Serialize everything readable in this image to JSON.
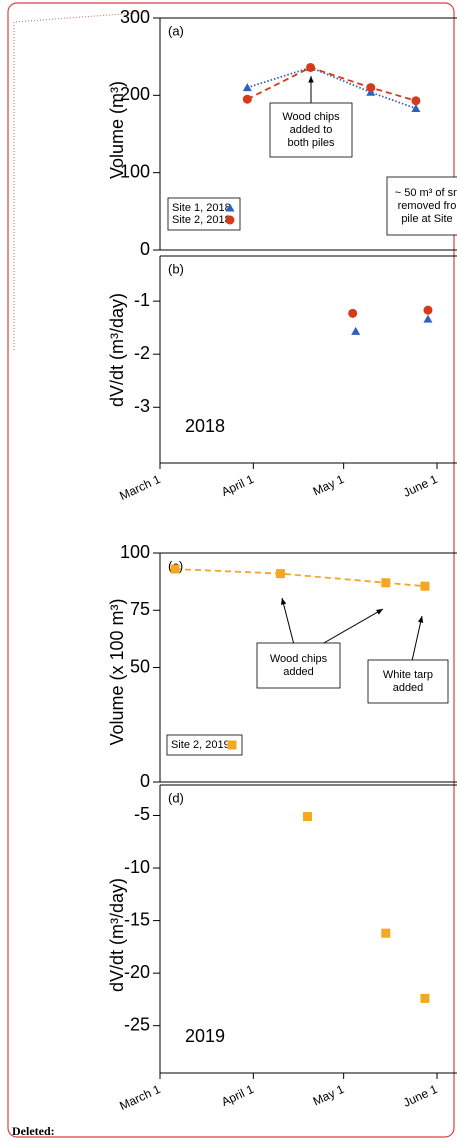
{
  "chart_data": [
    {
      "type": "scatter",
      "panel_label": "(a)",
      "y_label": "Volume (m³)",
      "xlim": [
        0,
        93
      ],
      "ylim": [
        0,
        300
      ],
      "yticks": [
        0,
        100,
        200,
        300
      ],
      "series": [
        {
          "name": "Site 1, 2018",
          "color": "#2f5fbf",
          "marker": "triangle",
          "line_style": "dotted",
          "x": [
            29,
            50,
            70,
            85
          ],
          "values": [
            210,
            236,
            204,
            183
          ]
        },
        {
          "name": "Site 2, 2018",
          "color": "#d63a1a",
          "marker": "circle",
          "line_style": "dashed",
          "x": [
            29,
            50,
            70,
            85
          ],
          "values": [
            195,
            236,
            210,
            193
          ]
        }
      ],
      "legend": "lower left",
      "annotations": [
        {
          "text": [
            "Wood chips",
            "added to",
            "both piles"
          ]
        },
        {
          "text": [
            "~ 50 m³ of sn",
            "removed fro",
            "pile at Site"
          ]
        }
      ]
    },
    {
      "type": "scatter",
      "panel_label": "(b)",
      "y_label": "dV/dt (m³/day)",
      "year_label": "2018",
      "xlim": [
        0,
        93
      ],
      "xticks": [
        {
          "value": 0,
          "label": "March 1"
        },
        {
          "value": 31,
          "label": "April 1"
        },
        {
          "value": 61,
          "label": "May 1"
        },
        {
          "value": 92,
          "label": "June 1"
        }
      ],
      "ylim": [
        -4.05,
        -0.15
      ],
      "yticks": [
        -3,
        -2,
        -1
      ],
      "series": [
        {
          "color": "#2f5fbf",
          "marker": "triangle",
          "x": [
            65,
            89
          ],
          "values": [
            -1.57,
            -1.34
          ]
        },
        {
          "color": "#d63a1a",
          "marker": "circle",
          "x": [
            64,
            89
          ],
          "values": [
            -1.23,
            -1.17
          ]
        }
      ]
    },
    {
      "type": "scatter",
      "panel_label": "(c)",
      "y_label": "Volume (x 100 m³)",
      "xlim": [
        0,
        93
      ],
      "ylim": [
        0,
        100
      ],
      "yticks": [
        0,
        50,
        75,
        100
      ],
      "series": [
        {
          "name": "Site 2, 2019",
          "color": "#f5a623",
          "marker": "square",
          "line_style": "dashed",
          "x": [
            5,
            40,
            75,
            88
          ],
          "values": [
            93,
            91,
            87,
            85.5
          ]
        }
      ],
      "legend": "lower left",
      "annotations": [
        {
          "text": [
            "Wood chips",
            "added"
          ]
        },
        {
          "text": [
            "White tarp",
            "added"
          ]
        }
      ]
    },
    {
      "type": "scatter",
      "panel_label": "(d)",
      "y_label": "dV/dt (m³/day)",
      "year_label": "2019",
      "xlim": [
        0,
        93
      ],
      "xticks": [
        {
          "value": 0,
          "label": "March 1"
        },
        {
          "value": 31,
          "label": "April 1"
        },
        {
          "value": 61,
          "label": "May 1"
        },
        {
          "value": 92,
          "label": "June 1"
        }
      ],
      "ylim": [
        -29.5,
        -2.1
      ],
      "yticks": [
        -25,
        -20,
        -15,
        -10,
        -5
      ],
      "series": [
        {
          "color": "#f5a623",
          "marker": "square",
          "x": [
            49,
            75,
            88
          ],
          "values": [
            -5.1,
            -16.2,
            -22.4
          ]
        }
      ]
    }
  ],
  "deleted_label": "Deleted:"
}
